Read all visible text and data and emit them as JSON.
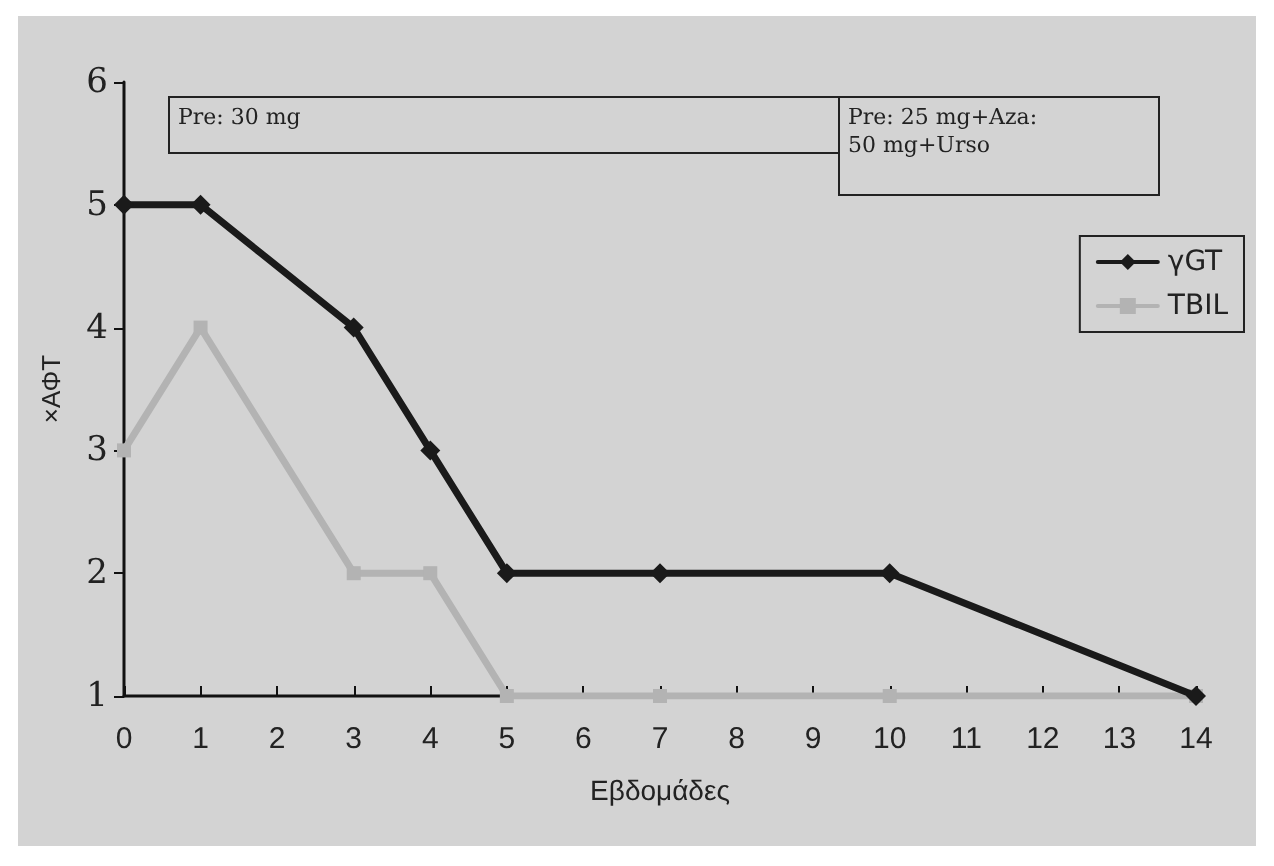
{
  "chart_data": {
    "type": "line",
    "xlabel": "Εβδομάδες",
    "ylabel": "×ΑΦΤ",
    "categories": [
      "0",
      "1",
      "2",
      "3",
      "4",
      "5",
      "6",
      "7",
      "8",
      "9",
      "10",
      "11",
      "12",
      "13",
      "14"
    ],
    "series": [
      {
        "name": "γGT",
        "color": "#1a1a1a",
        "marker": "diamond",
        "values": [
          5,
          5,
          null,
          4,
          3,
          2,
          null,
          2,
          null,
          null,
          2,
          null,
          null,
          null,
          1
        ]
      },
      {
        "name": "TBIL",
        "color": "#b3b3b3",
        "marker": "square",
        "values": [
          3,
          4,
          null,
          2,
          2,
          1,
          null,
          1,
          null,
          null,
          1,
          null,
          null,
          null,
          1
        ]
      }
    ],
    "ylim": [
      1,
      6
    ],
    "yticks": [
      1,
      2,
      3,
      4,
      5,
      6
    ],
    "grid": false,
    "legend": "right",
    "annotations": [
      "Pre: 30 mg",
      "Pre: 25 mg+Aza:\n50 mg+Urso"
    ]
  }
}
